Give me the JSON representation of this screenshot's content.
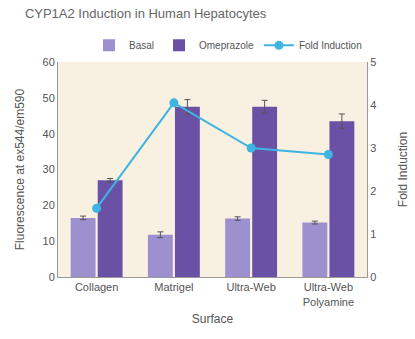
{
  "chart_data": {
    "type": "bar",
    "title": "CYP1A2 Induction in Human Hepatocytes",
    "x_label": "Surface",
    "y_label": "Fluorescence at ex544/em590",
    "y2_label": "Fold Induction",
    "categories": [
      "Collagen",
      "Matrigel",
      "Ultra-Web",
      "Ultra-Web Polyamine"
    ],
    "series": [
      {
        "name": "Basal",
        "color": "#9d90cf",
        "values": [
          16.5,
          11.8,
          16.3,
          15.2
        ],
        "errors": [
          0.5,
          0.8,
          0.5,
          0.4
        ]
      },
      {
        "name": "Omeprazole",
        "color": "#6b51a6",
        "values": [
          27,
          47.5,
          47.5,
          43.5
        ],
        "errors": [
          0.5,
          2,
          1.8,
          2
        ]
      },
      {
        "name": "Fold Induction",
        "type": "line",
        "axis": "y2",
        "marker": "circle",
        "color": "#3db4e2",
        "values": [
          1.6,
          4.05,
          3.0,
          2.85
        ]
      }
    ],
    "ylim": [
      0,
      60
    ],
    "yticks": [
      0,
      10,
      20,
      30,
      40,
      50,
      60
    ],
    "y2lim": [
      0,
      5
    ],
    "y2ticks": [
      0,
      1,
      2,
      3,
      4,
      5
    ],
    "grid": false,
    "legend": "top right"
  }
}
